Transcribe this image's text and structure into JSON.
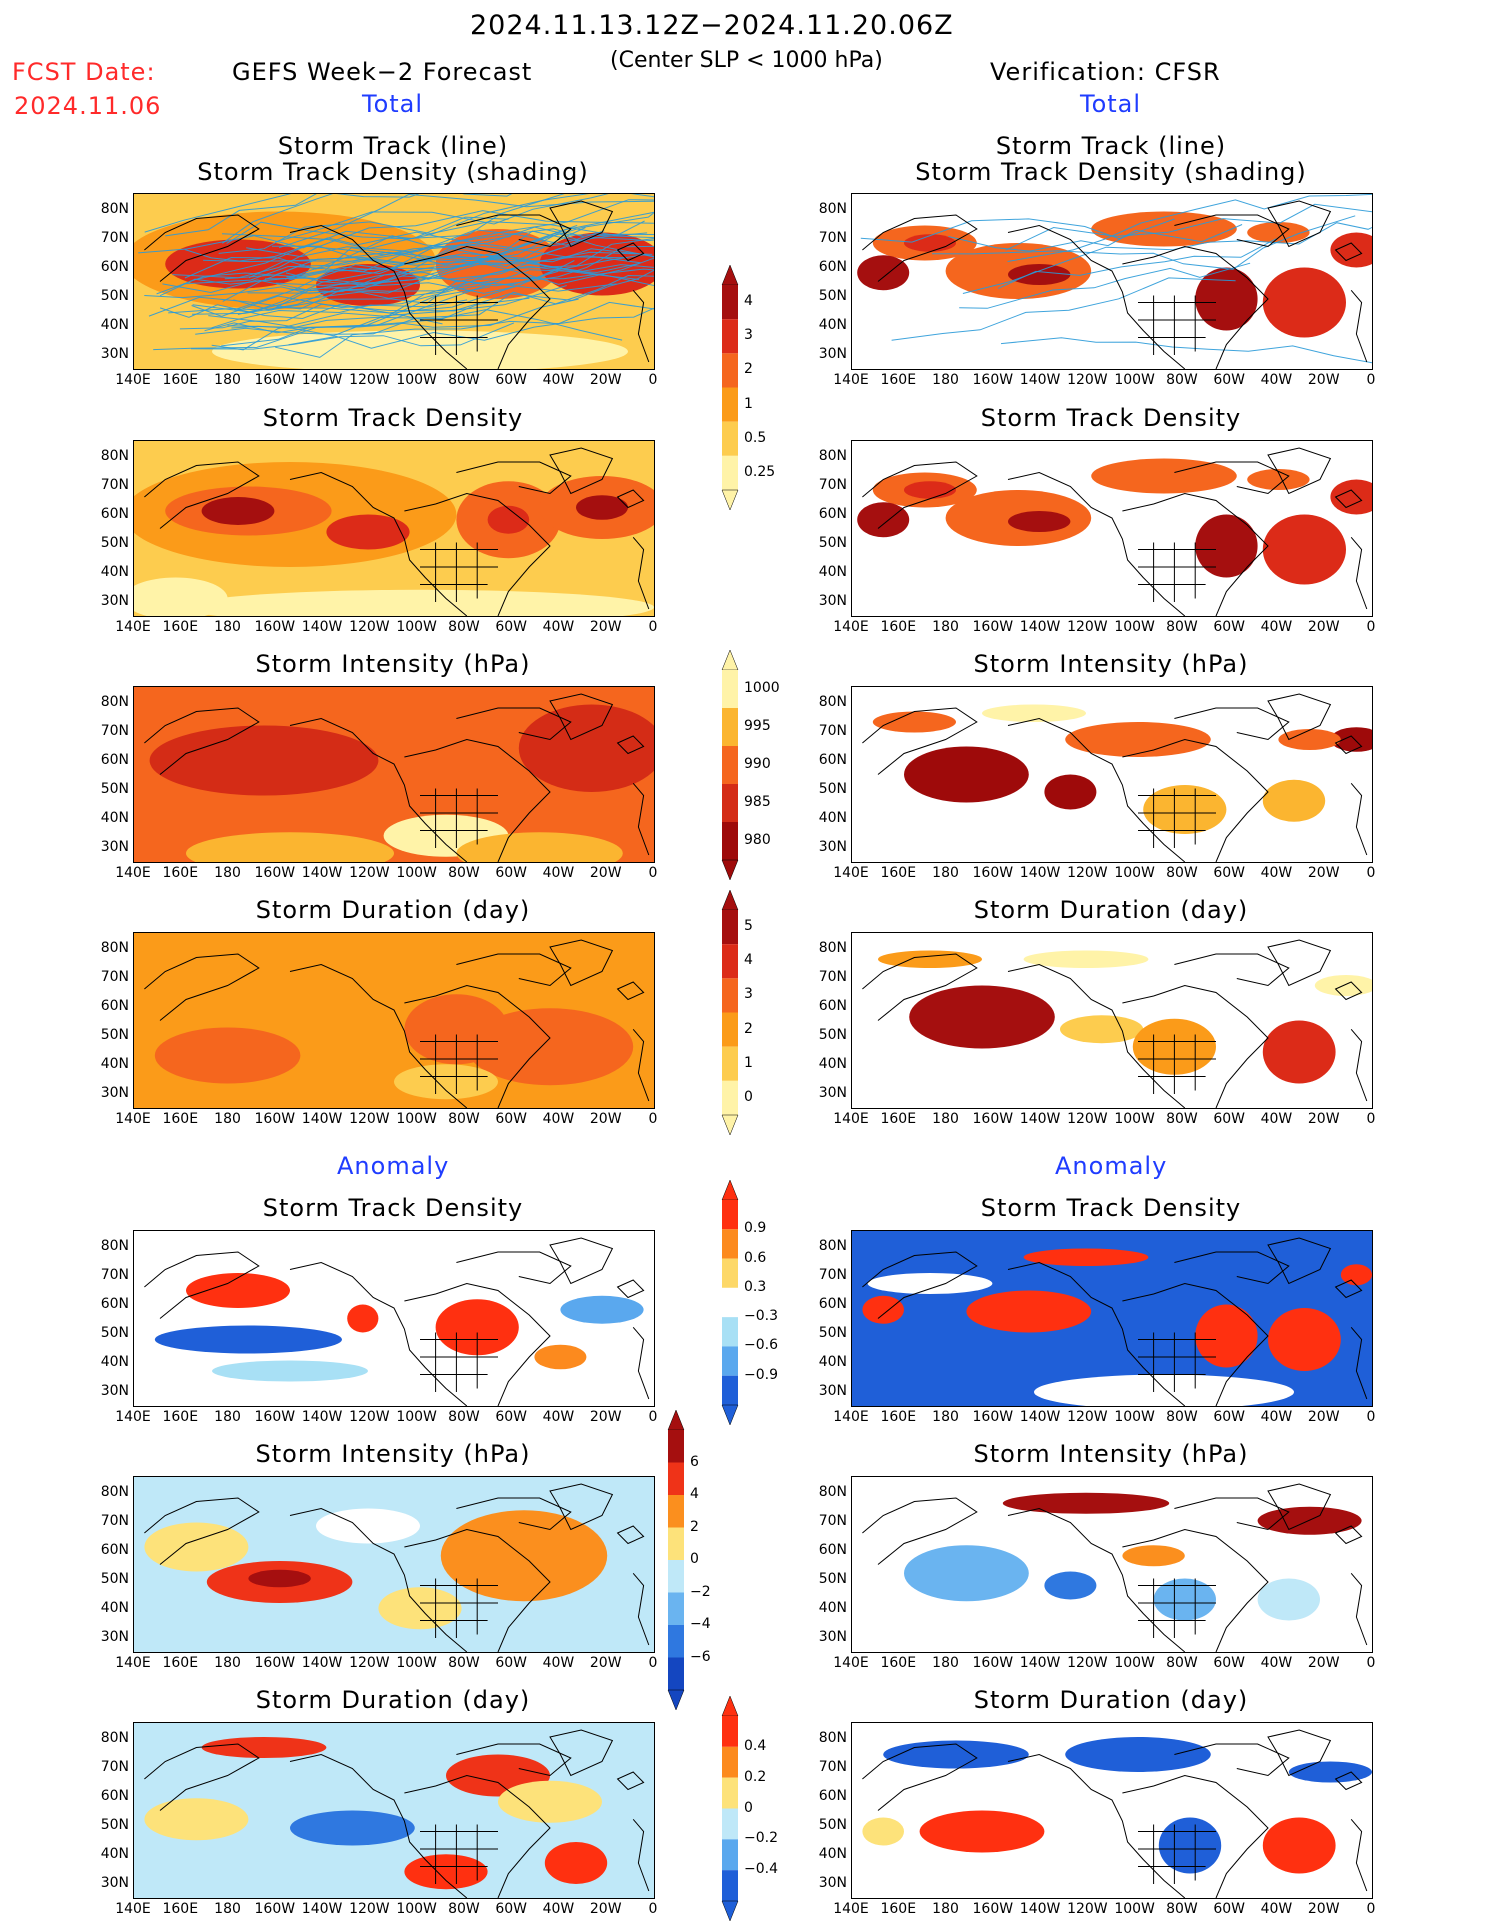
{
  "header": {
    "date_range": "2024.11.13.12Z−2024.11.20.06Z",
    "subtitle": "(Center SLP < 1000 hPa)",
    "fcst_label": "FCST Date:",
    "fcst_date": "2024.11.06",
    "left_title": "GEFS Week−2 Forecast",
    "right_title": "Verification: CFSR",
    "total_left": "Total",
    "total_right": "Total",
    "anomaly_left": "Anomaly",
    "anomaly_right": "Anomaly"
  },
  "panels": {
    "p1": {
      "line1": "Storm Track (line)",
      "line2": "Storm Track Density (shading)"
    },
    "p2": "Storm Track Density",
    "p3": "Storm Intensity (hPa)",
    "p4": "Storm Duration (day)",
    "p5": "Storm Track Density",
    "p6": "Storm Intensity (hPa)",
    "p7": "Storm Duration (day)"
  },
  "axes": {
    "lats": [
      "80N",
      "70N",
      "60N",
      "50N",
      "40N",
      "30N"
    ],
    "lons": [
      "140E",
      "160E",
      "180",
      "160W",
      "140W",
      "120W",
      "100W",
      "80W",
      "60W",
      "40W",
      "20W",
      "0"
    ]
  },
  "colorbars": {
    "density_total": {
      "labels": [
        "4",
        "3",
        "2",
        "1",
        "0.5",
        "0.25"
      ],
      "colors": [
        "#a50f0f",
        "#dc2b18",
        "#f5661e",
        "#fb9b19",
        "#fdcc4e",
        "#fff3a8"
      ]
    },
    "intensity_total": {
      "labels": [
        "1000",
        "995",
        "990",
        "985",
        "980"
      ],
      "colors": [
        "#fff3a8",
        "#fbb530",
        "#f5661e",
        "#d42c16",
        "#9e0a0a"
      ]
    },
    "duration_total": {
      "labels": [
        "5",
        "4",
        "3",
        "2",
        "1",
        "0"
      ],
      "colors": [
        "#a50f0f",
        "#dc2b18",
        "#f5661e",
        "#fb9b19",
        "#fdcc4e",
        "#fff3a8"
      ]
    },
    "density_anom": {
      "labels": [
        "0.9",
        "0.6",
        "0.3",
        "−0.3",
        "−0.6",
        "−0.9"
      ],
      "colors": [
        "#ff3010",
        "#fc8a1e",
        "#fdd868",
        "#ffffff",
        "#a8e0f5",
        "#5aa8ee",
        "#1f5fd8"
      ]
    },
    "intensity_anom": {
      "labels": [
        "6",
        "4",
        "2",
        "0",
        "−2",
        "−4",
        "−6"
      ],
      "colors": [
        "#a50f0f",
        "#ef3318",
        "#fb8f1e",
        "#fde27a",
        "#bfe8f8",
        "#6ab4f0",
        "#2f78e0",
        "#1446c0"
      ]
    },
    "duration_anom": {
      "labels": [
        "0.4",
        "0.2",
        "0",
        "−0.2",
        "−0.4"
      ],
      "colors": [
        "#ff3010",
        "#fc8a1e",
        "#fde27a",
        "#bfe8f8",
        "#5aa8ee",
        "#1f5fd8"
      ]
    }
  },
  "colors": {
    "title_red": "#ff2a2a",
    "title_blue": "#1f3cff",
    "track_line": "#2a9ad8"
  }
}
